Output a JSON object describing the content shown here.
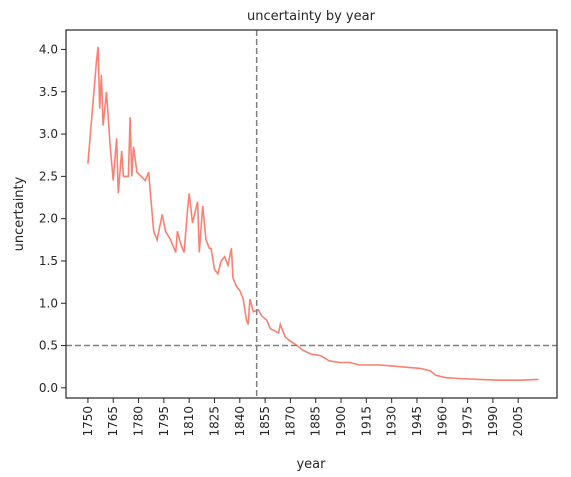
{
  "chart_data": {
    "type": "line",
    "title": "uncertainty by year",
    "xlabel": "year",
    "ylabel": "uncertainty",
    "series": [
      {
        "name": "uncertainty",
        "color": "#fa8072",
        "x": [
          1750,
          1755,
          1756,
          1757,
          1758,
          1759,
          1761,
          1763,
          1765,
          1767,
          1768,
          1770,
          1771,
          1774,
          1775,
          1776,
          1777,
          1779,
          1784,
          1786,
          1787,
          1789,
          1791,
          1794,
          1796,
          1799,
          1802,
          1803,
          1805,
          1807,
          1809,
          1810,
          1812,
          1815,
          1816,
          1818,
          1820,
          1822,
          1823,
          1825,
          1827,
          1829,
          1831,
          1833,
          1835,
          1836,
          1838,
          1840,
          1842,
          1844,
          1845,
          1846,
          1848,
          1851,
          1853,
          1856,
          1858,
          1863,
          1864,
          1867,
          1870,
          1874,
          1877,
          1882,
          1888,
          1893,
          1899,
          1905,
          1911,
          1923,
          1935,
          1947,
          1953,
          1956,
          1962,
          1970,
          1982,
          1994,
          2006,
          2017
        ],
        "values": [
          2.65,
          3.85,
          4.03,
          3.3,
          3.7,
          3.1,
          3.5,
          2.9,
          2.45,
          2.95,
          2.3,
          2.8,
          2.5,
          2.5,
          3.2,
          2.5,
          2.85,
          2.55,
          2.45,
          2.55,
          2.3,
          1.85,
          1.75,
          2.05,
          1.85,
          1.75,
          1.6,
          1.85,
          1.7,
          1.6,
          2.1,
          2.3,
          1.95,
          2.2,
          1.6,
          2.15,
          1.75,
          1.65,
          1.65,
          1.4,
          1.35,
          1.5,
          1.55,
          1.45,
          1.65,
          1.3,
          1.2,
          1.15,
          1.05,
          0.8,
          0.75,
          1.05,
          0.9,
          0.92,
          0.85,
          0.8,
          0.7,
          0.65,
          0.75,
          0.6,
          0.55,
          0.5,
          0.45,
          0.4,
          0.38,
          0.32,
          0.3,
          0.3,
          0.27,
          0.27,
          0.25,
          0.23,
          0.2,
          0.15,
          0.12,
          0.11,
          0.1,
          0.09,
          0.09,
          0.1
        ]
      }
    ],
    "vline": 1850,
    "hline": 0.5,
    "refline_color": "#808080",
    "xlim": [
      1737,
      2028
    ],
    "ylim": [
      -0.12,
      4.23
    ],
    "xticks": [
      1750,
      1765,
      1780,
      1795,
      1810,
      1825,
      1840,
      1855,
      1870,
      1885,
      1900,
      1915,
      1930,
      1945,
      1960,
      1975,
      1990,
      2005
    ],
    "yticks": [
      {
        "value": 0,
        "label": "0.0"
      },
      {
        "value": 0.5,
        "label": "0.5"
      },
      {
        "value": 1,
        "label": "1.0"
      },
      {
        "value": 1.5,
        "label": "1.5"
      },
      {
        "value": 2,
        "label": "2.0"
      },
      {
        "value": 2.5,
        "label": "2.5"
      },
      {
        "value": 3,
        "label": "3.0"
      },
      {
        "value": 3.5,
        "label": "3.5"
      },
      {
        "value": 4,
        "label": "4.0"
      }
    ]
  }
}
